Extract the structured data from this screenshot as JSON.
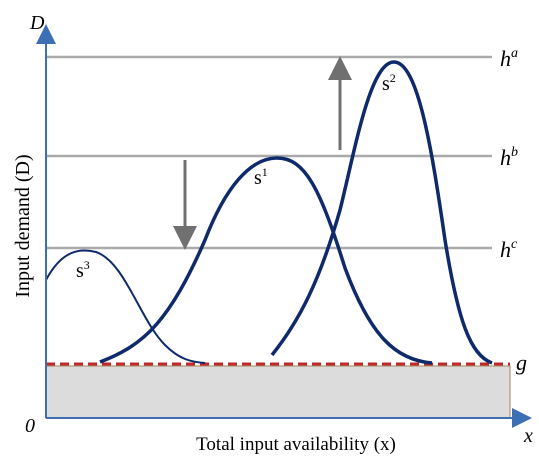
{
  "axes": {
    "y_label": "Input demand (D)",
    "x_label": "Total input availability (x)",
    "y_letter": "D",
    "x_letter": "x",
    "origin": "0"
  },
  "levels": [
    {
      "base": "h",
      "sup": "a"
    },
    {
      "base": "h",
      "sup": "b"
    },
    {
      "base": "h",
      "sup": "c"
    },
    {
      "base": "g",
      "sup": ""
    }
  ],
  "curves": [
    {
      "base": "s",
      "sup": "1"
    },
    {
      "base": "s",
      "sup": "2"
    },
    {
      "base": "s",
      "sup": "3"
    }
  ],
  "colors": {
    "axis": "#3d6fb4",
    "curve": "#0f2a6b",
    "level_line": "#aaaaaa",
    "arrow": "#707070",
    "dashed": "#c0282d",
    "floor_fill": "#dcdcdc"
  }
}
